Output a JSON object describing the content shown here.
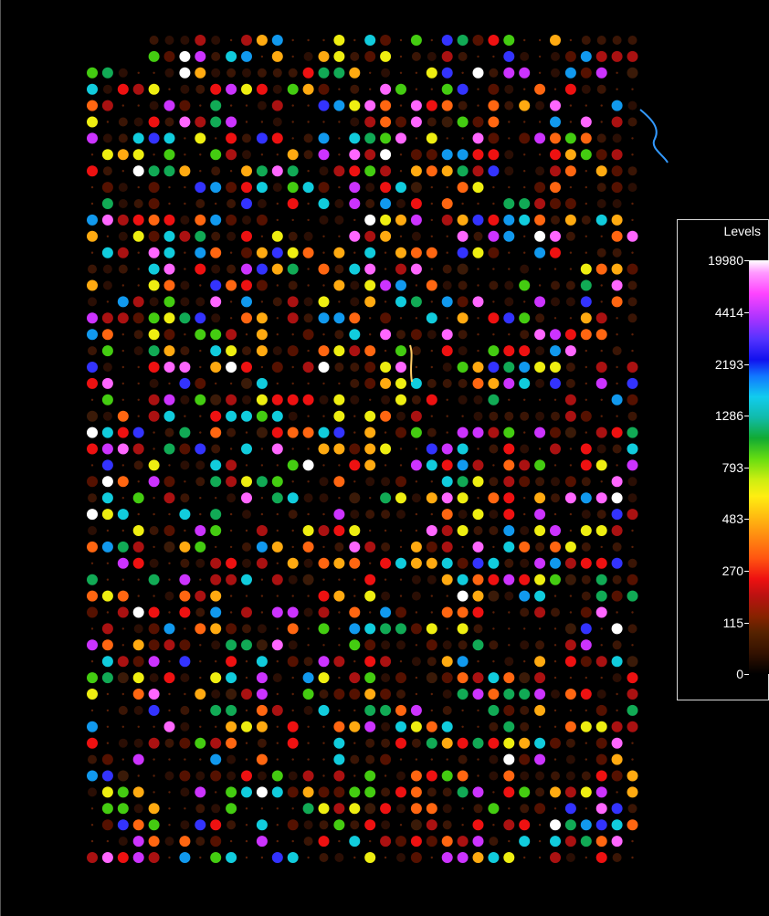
{
  "legend": {
    "title": "Levels",
    "ticks": [
      "19980",
      "4414",
      "2193",
      "1286",
      "793",
      "483",
      "270",
      "115",
      "0"
    ]
  },
  "colors": {
    "background": "#000000",
    "palette": [
      "#ffffff",
      "#ff66ff",
      "#cc33ff",
      "#3333ff",
      "#1199ee",
      "#11ccdd",
      "#11aa55",
      "#44cc11",
      "#eeee11",
      "#ffaa11",
      "#ff6611",
      "#ee1111",
      "#aa1111",
      "#551100",
      "#3a1a08"
    ]
  }
}
